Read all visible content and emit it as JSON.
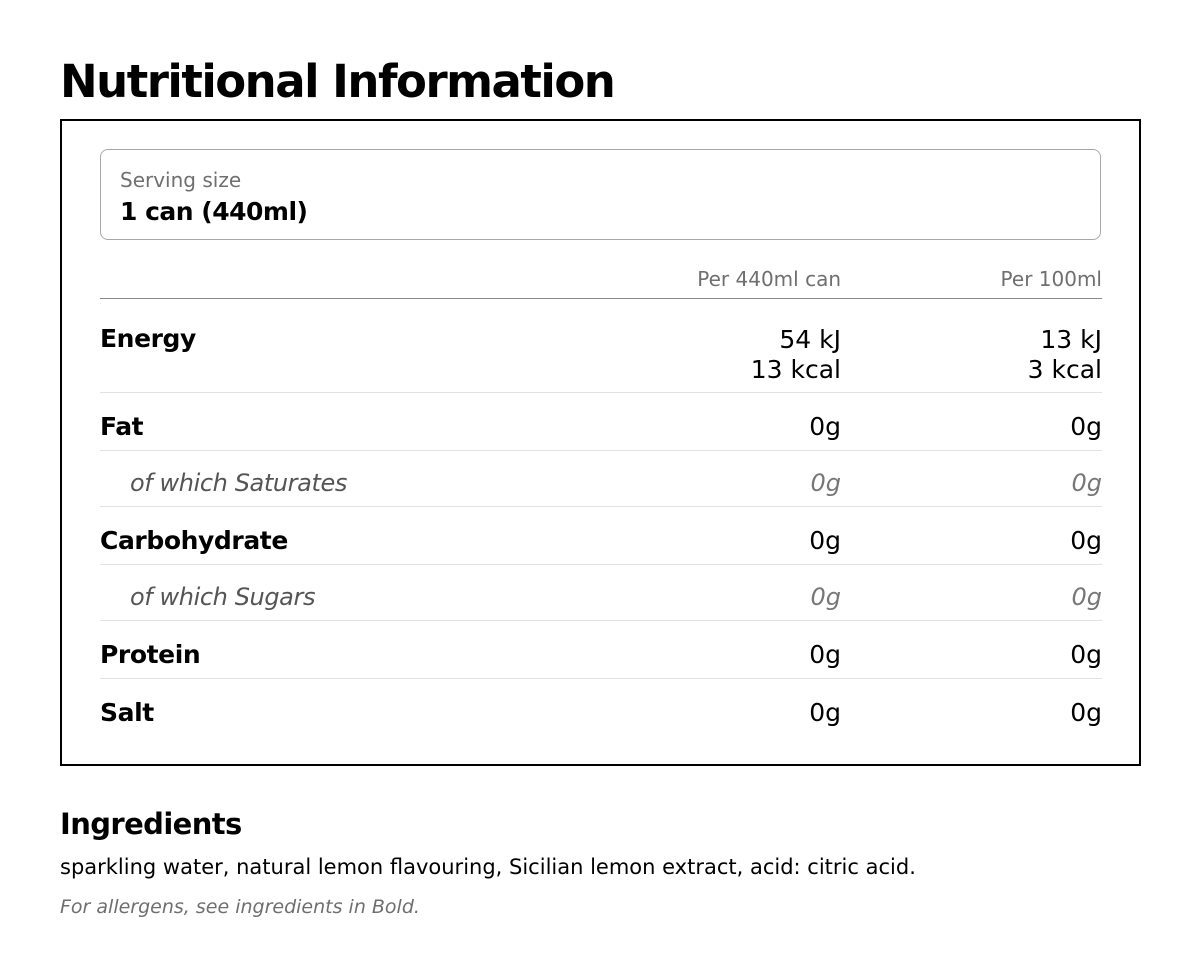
{
  "title": "Nutritional Information",
  "serving": {
    "label": "Serving size",
    "value": "1 can (440ml)"
  },
  "columns": [
    "Per 440ml can",
    "Per 100ml"
  ],
  "rows": [
    {
      "label": "Energy",
      "per_can": "54 kJ",
      "per_can_2": "13 kcal",
      "per_100": "13 kJ",
      "per_100_2": "3 kcal",
      "sub": false
    },
    {
      "label": "Fat",
      "per_can": "0g",
      "per_100": "0g",
      "sub": false
    },
    {
      "label": "of which Saturates",
      "per_can": "0g",
      "per_100": "0g",
      "sub": true
    },
    {
      "label": "Carbohydrate",
      "per_can": "0g",
      "per_100": "0g",
      "sub": false
    },
    {
      "label": "of which Sugars",
      "per_can": "0g",
      "per_100": "0g",
      "sub": true
    },
    {
      "label": "Protein",
      "per_can": "0g",
      "per_100": "0g",
      "sub": false
    },
    {
      "label": "Salt",
      "per_can": "0g",
      "per_100": "0g",
      "sub": false
    }
  ],
  "ingredients": {
    "title": "Ingredients",
    "text": "sparkling water, natural lemon flavouring, Sicilian lemon extract, acid: citric acid.",
    "note": "For allergens, see ingredients in Bold."
  }
}
